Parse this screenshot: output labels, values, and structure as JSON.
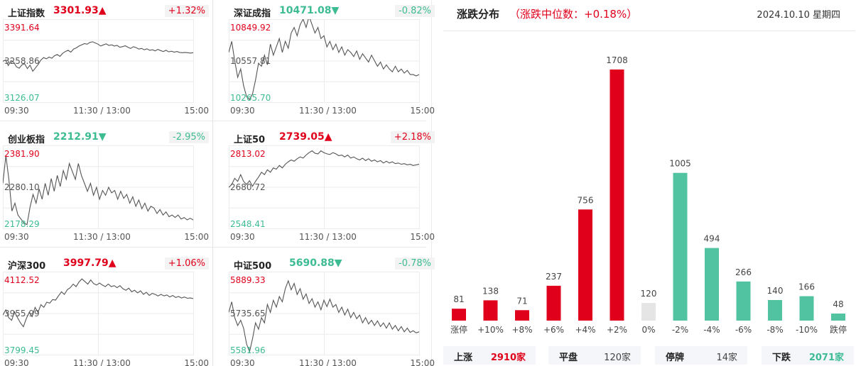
{
  "panels": [
    {
      "name": "上证指数",
      "value": "3301.93",
      "arrow": "▲",
      "dir": "up",
      "change": "+1.32%",
      "top": "3391.64",
      "mid": "3258.86",
      "bottom": "3126.07",
      "series": [
        3258,
        3262,
        3244,
        3260,
        3255,
        3240,
        3235,
        3246,
        3250,
        3234,
        3245,
        3225,
        3236,
        3248,
        3262,
        3270,
        3266,
        3272,
        3268,
        3276,
        3280,
        3274,
        3284,
        3290,
        3294,
        3288,
        3298,
        3302,
        3308,
        3312,
        3316,
        3314,
        3320,
        3322,
        3318,
        3314,
        3308,
        3312,
        3315,
        3310,
        3312,
        3308,
        3310,
        3304,
        3306,
        3309,
        3304,
        3300,
        3306,
        3303,
        3298,
        3300,
        3296,
        3299,
        3294,
        3296,
        3292,
        3297,
        3293,
        3290,
        3294,
        3289,
        3291,
        3288,
        3290,
        3287,
        3286,
        3287,
        3286,
        3285,
        3286
      ]
    },
    {
      "name": "深证成指",
      "value": "10471.08",
      "arrow": "▼",
      "dir": "down",
      "change": "-0.82%",
      "top": "10849.92",
      "mid": "10557.81",
      "bottom": "10265.70",
      "series": [
        10620,
        10700,
        10560,
        10440,
        10500,
        10380,
        10300,
        10280,
        10320,
        10420,
        10540,
        10520,
        10600,
        10530,
        10680,
        10600,
        10660,
        10720,
        10620,
        10700,
        10650,
        10760,
        10800,
        10740,
        10820,
        10860,
        10800,
        10880,
        10820,
        10760,
        10800,
        10720,
        10740,
        10660,
        10700,
        10640,
        10680,
        10620,
        10660,
        10600,
        10640,
        10620,
        10590,
        10630,
        10570,
        10610,
        10580,
        10550,
        10600,
        10560,
        10520,
        10550,
        10500,
        10530,
        10500,
        10480,
        10520,
        10480,
        10500,
        10470,
        10490,
        10460,
        10460,
        10450,
        10460
      ]
    },
    {
      "name": "创业板指",
      "value": "2212.91",
      "arrow": "▼",
      "dir": "down",
      "change": "-2.95%",
      "top": "2381.90",
      "mid": "2280.10",
      "bottom": "2178.29",
      "series": [
        2290,
        2360,
        2300,
        2220,
        2240,
        2210,
        2200,
        2190,
        2186,
        2230,
        2262,
        2240,
        2276,
        2250,
        2290,
        2260,
        2302,
        2270,
        2310,
        2282,
        2322,
        2300,
        2340,
        2320,
        2300,
        2340,
        2310,
        2290,
        2270,
        2290,
        2260,
        2280,
        2250,
        2272,
        2260,
        2280,
        2266,
        2272,
        2250,
        2270,
        2252,
        2262,
        2240,
        2256,
        2232,
        2248,
        2226,
        2240,
        2220,
        2232,
        2228,
        2214,
        2224,
        2210,
        2218,
        2206,
        2210,
        2204,
        2210,
        2200,
        2204,
        2198,
        2202,
        2198
      ]
    },
    {
      "name": "上证50",
      "value": "2739.05",
      "arrow": "▲",
      "dir": "up",
      "change": "+2.18%",
      "top": "2813.02",
      "mid": "2680.72",
      "bottom": "2548.41",
      "series": [
        2680,
        2690,
        2710,
        2700,
        2722,
        2700,
        2690,
        2702,
        2684,
        2700,
        2714,
        2730,
        2722,
        2738,
        2730,
        2744,
        2740,
        2752,
        2744,
        2756,
        2764,
        2770,
        2766,
        2774,
        2780,
        2776,
        2786,
        2794,
        2800,
        2792,
        2790,
        2800,
        2794,
        2790,
        2788,
        2794,
        2790,
        2784,
        2786,
        2780,
        2786,
        2776,
        2780,
        2774,
        2770,
        2776,
        2768,
        2774,
        2766,
        2770,
        2764,
        2768,
        2760,
        2766,
        2760,
        2764,
        2758,
        2760,
        2756,
        2758,
        2754,
        2756,
        2752,
        2754,
        2756
      ]
    },
    {
      "name": "沪深300",
      "value": "3997.79",
      "arrow": "▲",
      "dir": "up",
      "change": "+1.06%",
      "top": "4112.52",
      "mid": "3955.99",
      "bottom": "3799.45",
      "series": [
        3950,
        3970,
        3940,
        3930,
        3962,
        3940,
        3920,
        3905,
        3936,
        3960,
        3944,
        3980,
        3960,
        3990,
        3980,
        4000,
        3996,
        4010,
        4008,
        4024,
        4040,
        4030,
        4048,
        4056,
        4070,
        4060,
        4078,
        4090,
        4080,
        4070,
        4086,
        4072,
        4066,
        4074,
        4066,
        4060,
        4070,
        4060,
        4064,
        4056,
        4064,
        4052,
        4046,
        4054,
        4040,
        4046,
        4036,
        4044,
        4030,
        4038,
        4026,
        4034,
        4030,
        4024,
        4030,
        4024,
        4028,
        4020,
        4026,
        4018,
        4022,
        4016,
        4020,
        4015,
        4016,
        4014
      ]
    },
    {
      "name": "中证500",
      "value": "5690.88",
      "arrow": "▼",
      "dir": "down",
      "change": "-0.78%",
      "top": "5889.33",
      "mid": "5735.65",
      "bottom": "5581.96",
      "series": [
        5740,
        5780,
        5720,
        5690,
        5710,
        5680,
        5620,
        5590,
        5640,
        5700,
        5676,
        5720,
        5700,
        5770,
        5740,
        5786,
        5760,
        5800,
        5780,
        5830,
        5860,
        5826,
        5850,
        5808,
        5830,
        5790,
        5810,
        5774,
        5792,
        5760,
        5780,
        5750,
        5786,
        5762,
        5790,
        5760,
        5770,
        5740,
        5760,
        5730,
        5752,
        5720,
        5740,
        5716,
        5730,
        5700,
        5720,
        5696,
        5710,
        5690,
        5708,
        5686,
        5700,
        5680,
        5700,
        5676,
        5690,
        5670,
        5686,
        5666,
        5680,
        5664,
        5670,
        5662,
        5666
      ]
    }
  ],
  "time_labels": [
    "09:30",
    "11:30 / 13:00",
    "15:00"
  ],
  "distribution": {
    "title": "涨跌分布",
    "subtitle": "（涨跌中位数：+0.18%）",
    "date": "2024.10.10 星期四",
    "colors": {
      "up": "#e0001b",
      "flat": "#e5e5e5",
      "down": "#52c3a1"
    },
    "chart_data": {
      "type": "bar",
      "categories": [
        "涨停",
        "+10%",
        "+8%",
        "+6%",
        "+4%",
        "+2%",
        "0%",
        "-2%",
        "-4%",
        "-6%",
        "-8%",
        "-10%",
        "跌停"
      ],
      "values": [
        81,
        138,
        71,
        237,
        756,
        1708,
        120,
        1005,
        494,
        266,
        140,
        166,
        48
      ],
      "bar_colors": [
        "up",
        "up",
        "up",
        "up",
        "up",
        "up",
        "flat",
        "down",
        "down",
        "down",
        "down",
        "down",
        "down"
      ]
    }
  },
  "footer": [
    {
      "label": "上涨",
      "value": "2910家",
      "dir": "up"
    },
    {
      "label": "平盘",
      "value": "120家",
      "dir": "flat"
    },
    {
      "label": "停牌",
      "value": "14家",
      "dir": "flat"
    },
    {
      "label": "下跌",
      "value": "2071家",
      "dir": "down"
    }
  ]
}
